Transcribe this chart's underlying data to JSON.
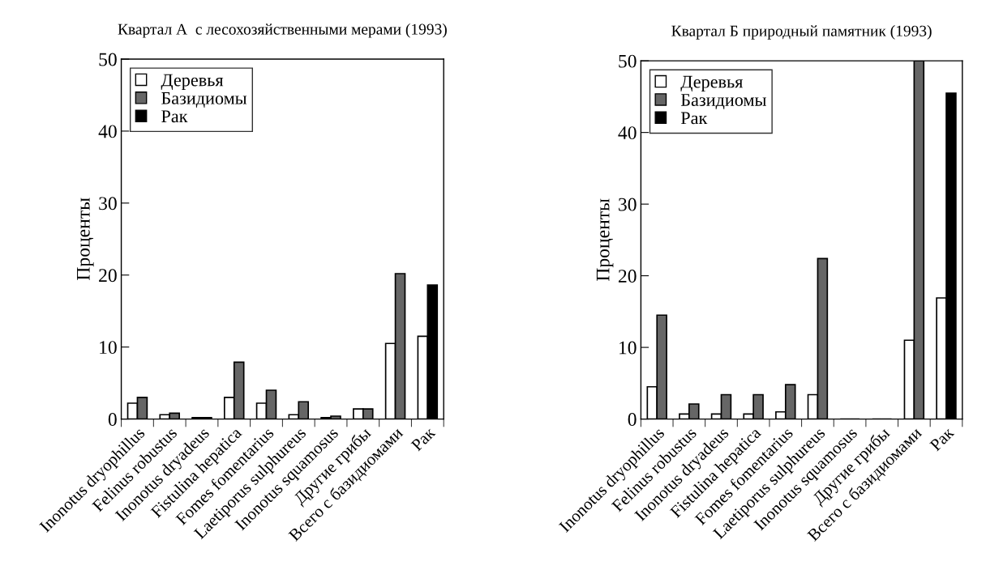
{
  "chart_data": [
    {
      "type": "bar",
      "title": "Квартал А  с лесохозяйственными мерами (1993)",
      "ylabel": "Проценты",
      "categories": [
        "Inonotus dryophillus",
        "Felinus robustus",
        "Inonotus dryadeus",
        "Fistulina hepatica",
        "Fomes fomentarius",
        "Laetiporus sulphureus",
        "Inonotus squamosus",
        "Другие грибы",
        "Всего с базидиомами",
        "Рак"
      ],
      "series": [
        {
          "name": "Деревья",
          "color": "#ffffff",
          "values": [
            2.2,
            0.6,
            0.2,
            3.0,
            2.2,
            0.6,
            0.2,
            1.4,
            10.5,
            11.5
          ]
        },
        {
          "name": "Базидиомы",
          "color": "#666666",
          "values": [
            3.0,
            0.8,
            0.2,
            7.9,
            4.0,
            2.4,
            0.4,
            1.4,
            20.2,
            null
          ]
        },
        {
          "name": "Рак",
          "color": "#000000",
          "values": [
            null,
            null,
            null,
            null,
            null,
            null,
            null,
            null,
            null,
            18.6
          ]
        }
      ],
      "ylim": [
        0,
        50
      ],
      "yticks": [
        0,
        10,
        20,
        30,
        40,
        50
      ],
      "grid": false,
      "legend": "top left"
    },
    {
      "type": "bar",
      "title": "Квартал Б природный памятник (1993)",
      "ylabel": "Проценты",
      "categories": [
        "Inonotus dryophillus",
        "Felinus robustus",
        "Inonotus dryadeus",
        "Fistulina hepatica",
        "Fomes fomentarius",
        "Laetiporus sulphureus",
        "Inonotus squamosus",
        "Другие грибы",
        "Всего с базидиомами",
        "Рак"
      ],
      "series": [
        {
          "name": "Деревья",
          "color": "#ffffff",
          "values": [
            4.5,
            0.7,
            0.7,
            0.7,
            1.0,
            3.4,
            0,
            0,
            11.0,
            16.9
          ]
        },
        {
          "name": "Базидиомы",
          "color": "#666666",
          "values": [
            14.5,
            2.1,
            3.4,
            3.4,
            4.8,
            22.4,
            0,
            0,
            50.0,
            null
          ]
        },
        {
          "name": "Рак",
          "color": "#000000",
          "values": [
            null,
            null,
            null,
            null,
            null,
            null,
            null,
            null,
            null,
            45.5
          ]
        }
      ],
      "ylim": [
        0,
        50
      ],
      "yticks": [
        0,
        10,
        20,
        30,
        40,
        50
      ],
      "grid": false,
      "legend": "top left"
    }
  ]
}
